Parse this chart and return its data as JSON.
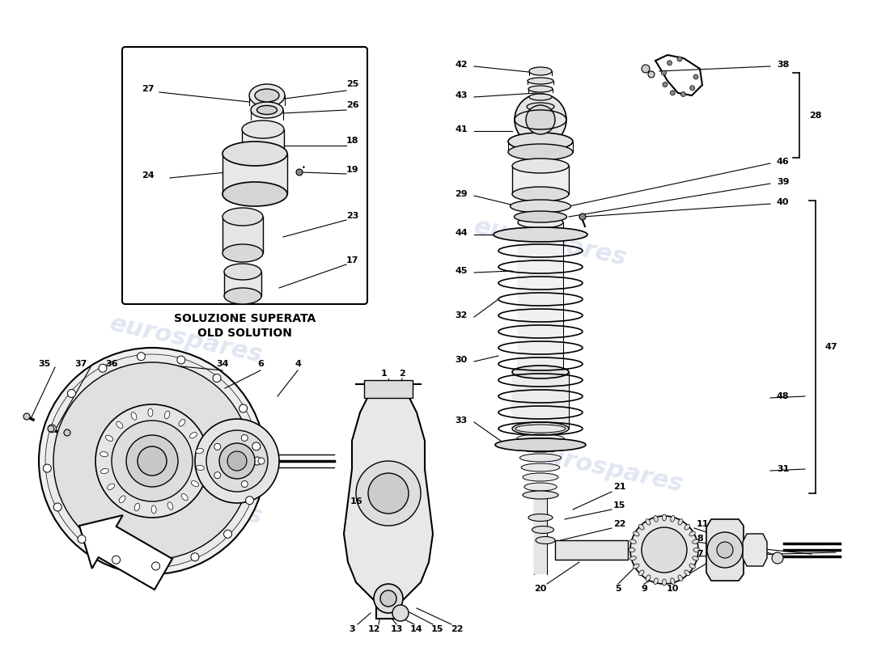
{
  "bg": "#ffffff",
  "lc": "#000000",
  "wc": "#c8d4e8",
  "wm": "eurospares",
  "fig_w": 11.0,
  "fig_h": 8.0,
  "dpi": 100,
  "box_label1": "SOLUZIONE SUPERATA",
  "box_label2": "OLD SOLUTION"
}
